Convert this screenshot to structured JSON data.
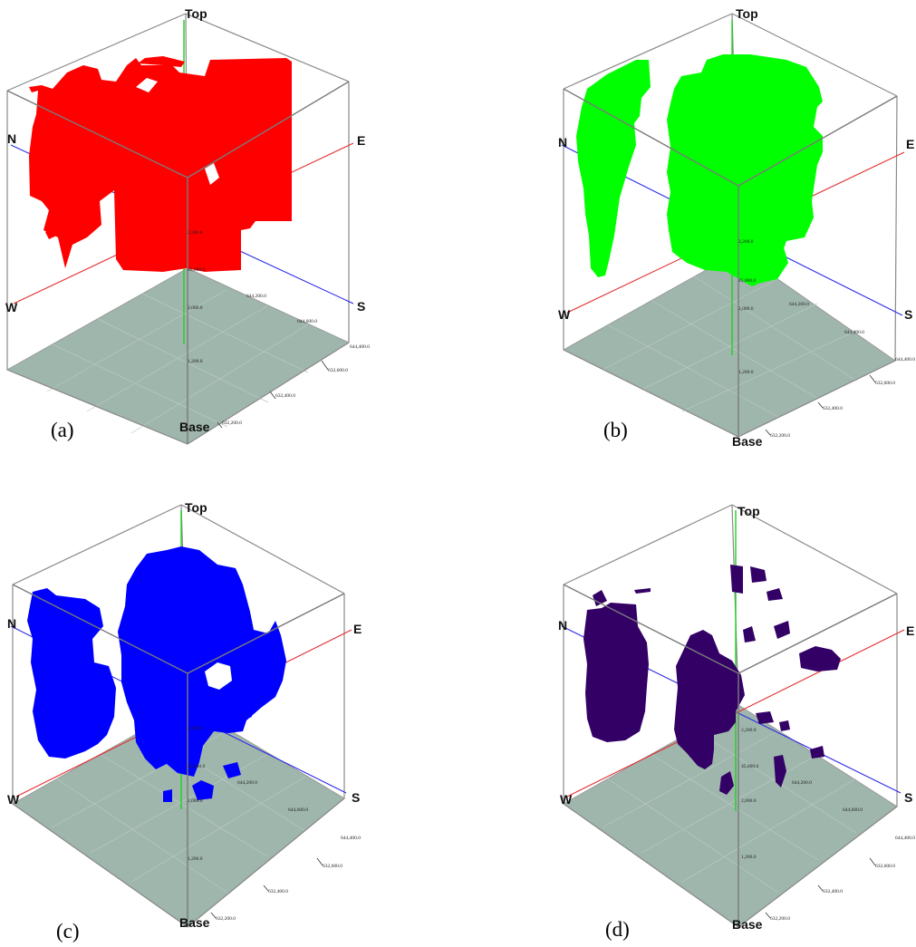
{
  "panels": [
    {
      "id": "a",
      "caption": "(a)",
      "color": "#ff0000",
      "labels": {
        "top": "Top",
        "base": "Base",
        "north": "N",
        "south": "S",
        "east": "E",
        "west": "W"
      },
      "ticks": [
        "2,200.0",
        "45,000.0",
        "2,000.0",
        "1,200.0",
        "644,200.0",
        "644,600.0",
        "644,400.0",
        "632,600.0",
        "632,400.0",
        "632,200.0"
      ]
    },
    {
      "id": "b",
      "caption": "(b)",
      "color": "#00ff00",
      "labels": {
        "top": "Top",
        "base": "Base",
        "north": "N",
        "south": "S",
        "east": "E",
        "west": "W"
      },
      "ticks": [
        "2,200.0",
        "45,000.0",
        "2,000.0",
        "1,200.0",
        "644,200.0",
        "644,600.0",
        "644,400.0",
        "632,600.0",
        "632,400.0",
        "632,200.0"
      ]
    },
    {
      "id": "c",
      "caption": "(c)",
      "color": "#0000ff",
      "labels": {
        "top": "Top",
        "base": "Base",
        "north": "N",
        "south": "S",
        "east": "E",
        "west": "W"
      },
      "ticks": [
        "2,200.0",
        "45,000.0",
        "2,000.0",
        "1,200.0",
        "644,200.0",
        "644,600.0",
        "644,400.0",
        "632,600.0",
        "632,400.0",
        "632,200.0"
      ]
    },
    {
      "id": "d",
      "caption": "(d)",
      "color": "#330066",
      "labels": {
        "top": "Top",
        "base": "Base",
        "north": "N",
        "south": "S",
        "east": "E",
        "west": "W"
      },
      "ticks": [
        "2,200.0",
        "45,000.0",
        "2,000.0",
        "1,200.0",
        "644,200.0",
        "644,600.0",
        "644,400.0",
        "632,600.0",
        "632,400.0",
        "632,200.0"
      ]
    }
  ]
}
